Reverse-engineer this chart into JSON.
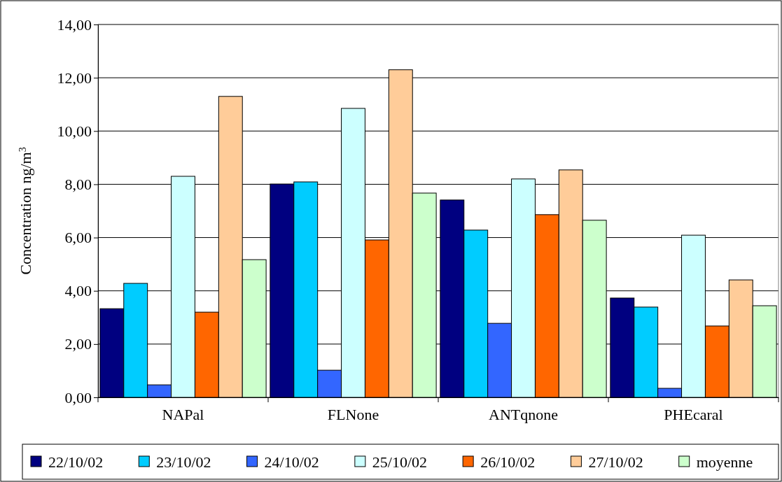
{
  "chart_data": {
    "type": "bar",
    "ylabel": "Concentration ng/m$^{3}$",
    "categories": [
      "NAPal",
      "FLNone",
      "ANTqnone",
      "PHEcaral"
    ],
    "series": [
      {
        "name": "22/10/02",
        "color": "#000080",
        "values": [
          3.33,
          8.01,
          7.41,
          3.73
        ]
      },
      {
        "name": "23/10/02",
        "color": "#00ccff",
        "values": [
          4.28,
          8.09,
          6.28,
          3.39
        ]
      },
      {
        "name": "24/10/02",
        "color": "#3366ff",
        "values": [
          0.47,
          1.02,
          2.78,
          0.34
        ]
      },
      {
        "name": "25/10/02",
        "color": "#ccffff",
        "values": [
          8.3,
          10.85,
          8.2,
          6.09
        ]
      },
      {
        "name": "26/10/02",
        "color": "#ff6600",
        "values": [
          3.2,
          5.91,
          6.86,
          2.68
        ]
      },
      {
        "name": "27/10/02",
        "color": "#ffcc99",
        "values": [
          11.3,
          12.3,
          8.54,
          4.41
        ]
      },
      {
        "name": "moyenne",
        "color": "#ccffcc",
        "values": [
          5.17,
          7.67,
          6.65,
          3.44
        ]
      }
    ],
    "ylim": [
      0,
      14
    ],
    "yticks": [
      {
        "value": 0,
        "label": "0,00"
      },
      {
        "value": 2,
        "label": "2,00"
      },
      {
        "value": 4,
        "label": "4,00"
      },
      {
        "value": 6,
        "label": "6,00"
      },
      {
        "value": 8,
        "label": "8,00"
      },
      {
        "value": 10,
        "label": "10,00"
      },
      {
        "value": 12,
        "label": "12,00"
      },
      {
        "value": 14,
        "label": "14,00"
      }
    ],
    "grid": "y",
    "legend": "bottom"
  }
}
